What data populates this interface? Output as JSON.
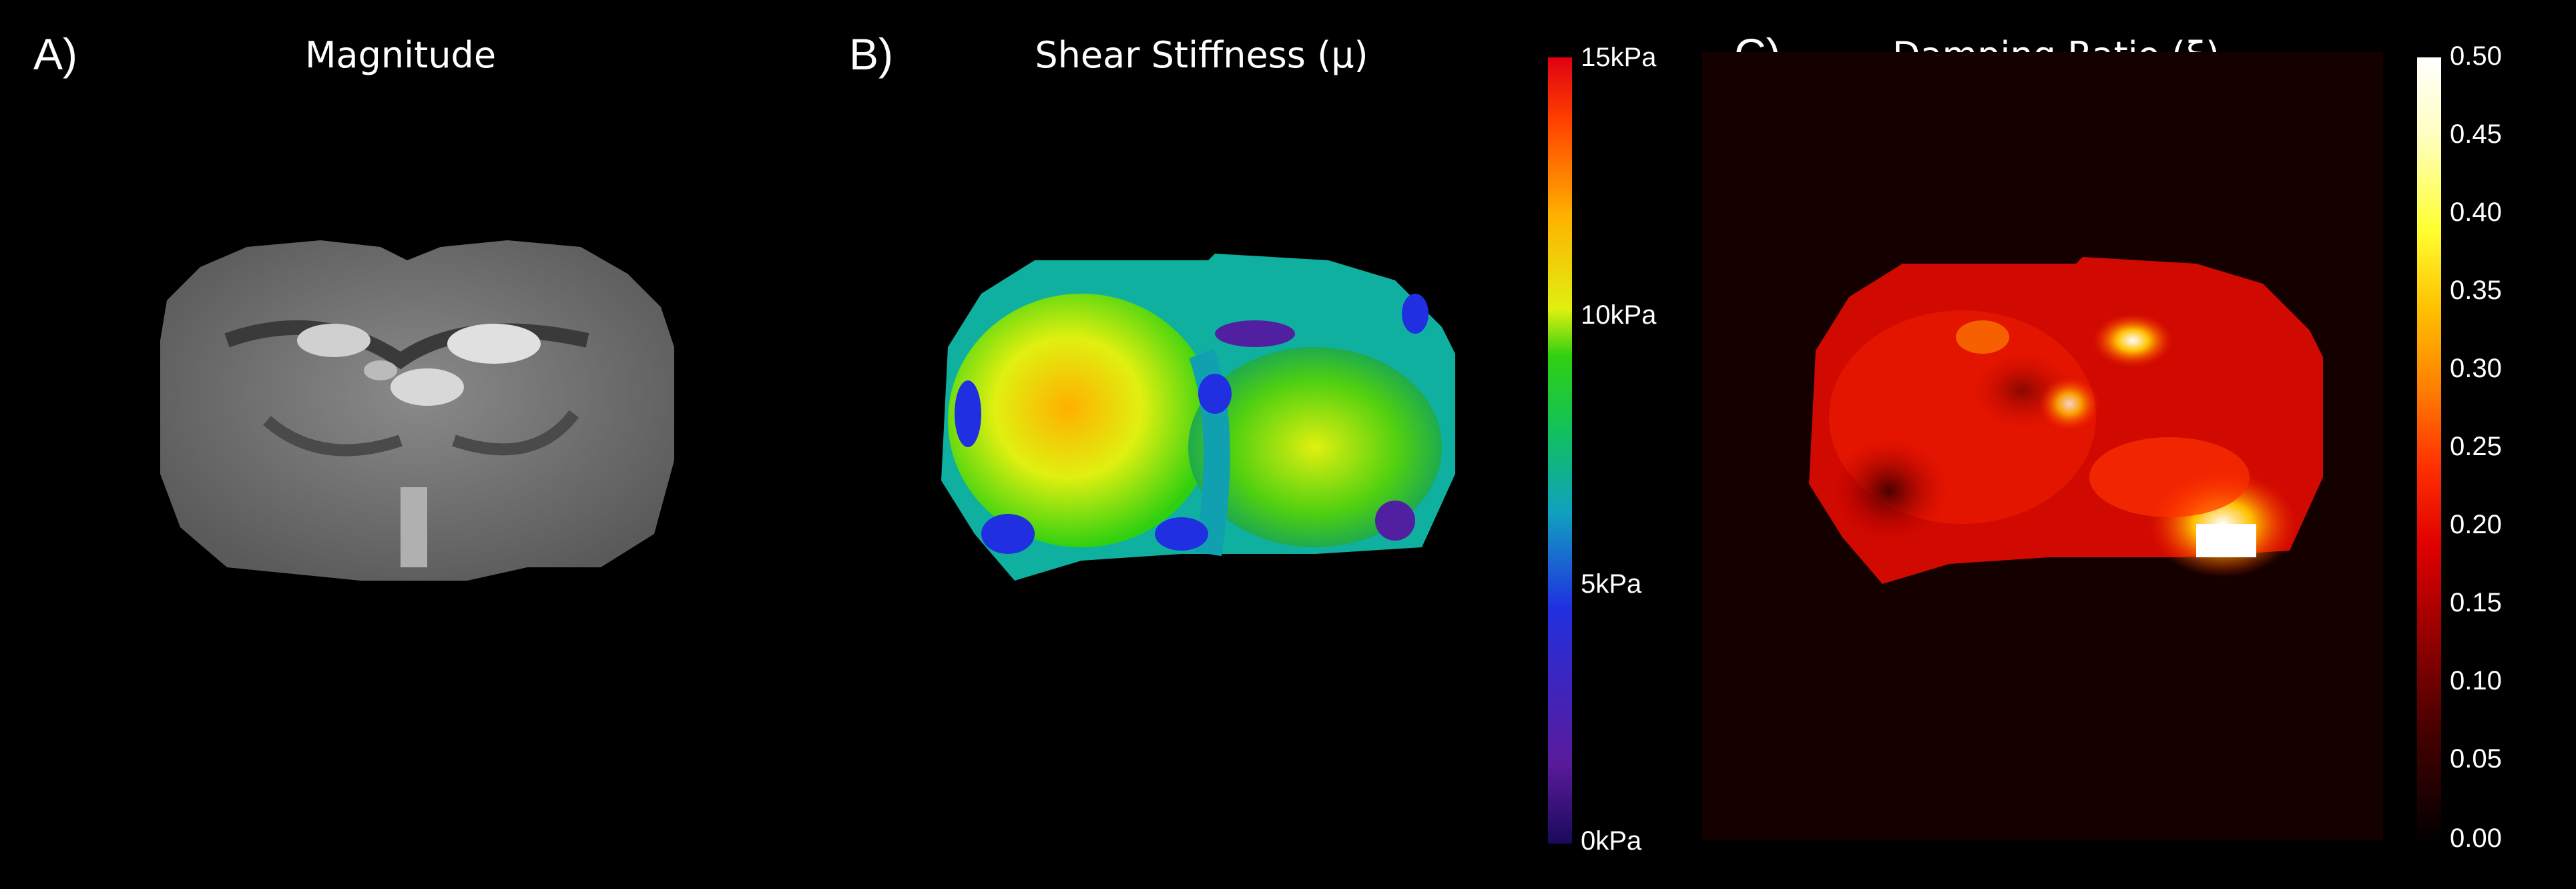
{
  "panels": [
    {
      "letter": "A)",
      "title": "Magnitude"
    },
    {
      "letter": "B)",
      "title": "Shear Stiffness (μ)"
    },
    {
      "letter": "C)",
      "title": "Damping Ratio (ξ)"
    }
  ],
  "stiffness_colorbar": {
    "ticks": [
      "15kPa",
      "10kPa",
      "5kPa",
      "0kPa"
    ],
    "range": [
      0,
      15
    ],
    "unit": "kPa",
    "colormap": [
      "#1a0a5a",
      "#5a1a9a",
      "#2030e0",
      "#10a0c0",
      "#10c060",
      "#30d010",
      "#e0f010",
      "#ffb000",
      "#ff4000",
      "#e00010"
    ]
  },
  "damping_colorbar": {
    "ticks": [
      "0.50",
      "0.45",
      "0.40",
      "0.35",
      "0.30",
      "0.25",
      "0.20",
      "0.15",
      "0.10",
      "0.05",
      "0.00"
    ],
    "range": [
      0,
      0.5
    ],
    "colormap": [
      "#000000",
      "#4a0000",
      "#9a0000",
      "#e00000",
      "#ff3000",
      "#ff8000",
      "#ffc000",
      "#ffff30",
      "#ffffc0",
      "#ffffff"
    ]
  }
}
